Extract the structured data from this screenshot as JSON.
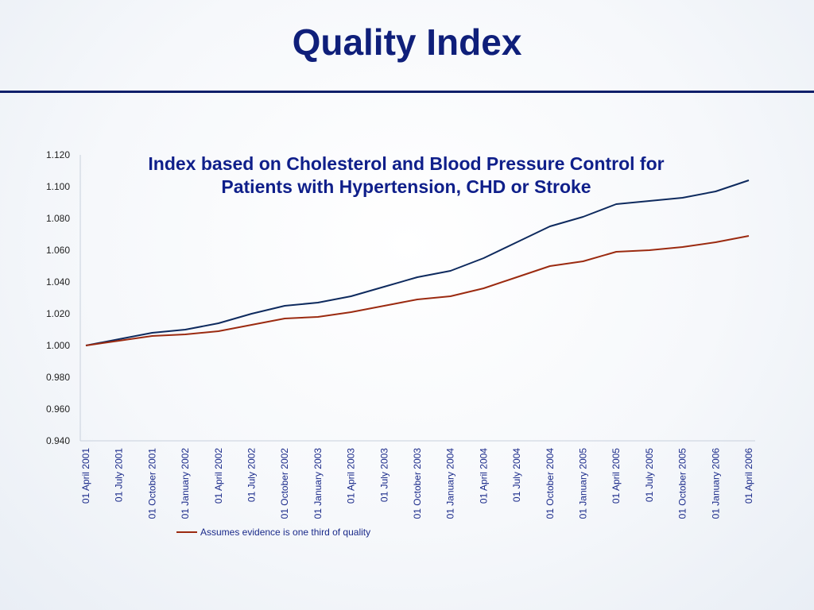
{
  "slide": {
    "title": "Quality Index"
  },
  "chart_data": {
    "type": "line",
    "title_lines": [
      "Index based on Cholesterol and Blood Pressure Control for",
      "Patients with Hypertension, CHD or Stroke"
    ],
    "x": [
      "01 April 2001",
      "01 July 2001",
      "01 October 2001",
      "01 January 2002",
      "01 April 2002",
      "01 July 2002",
      "01 October 2002",
      "01 January 2003",
      "01 April 2003",
      "01 July 2003",
      "01 October 2003",
      "01 January 2004",
      "01 April 2004",
      "01 July 2004",
      "01 October 2004",
      "01 January 2005",
      "01 April 2005",
      "01 July 2005",
      "01 October 2005",
      "01 January 2006",
      "01 April 2006"
    ],
    "series": [
      {
        "color": "#0e2a5e",
        "values": [
          1.0,
          1.004,
          1.008,
          1.01,
          1.014,
          1.02,
          1.025,
          1.027,
          1.031,
          1.037,
          1.043,
          1.047,
          1.055,
          1.065,
          1.075,
          1.081,
          1.089,
          1.091,
          1.093,
          1.097,
          1.104
        ]
      },
      {
        "name": "Assumes evidence is one third of quality",
        "color": "#9b2a10",
        "values": [
          1.0,
          1.003,
          1.006,
          1.007,
          1.009,
          1.013,
          1.017,
          1.018,
          1.021,
          1.025,
          1.029,
          1.031,
          1.036,
          1.043,
          1.05,
          1.053,
          1.059,
          1.06,
          1.062,
          1.065,
          1.069
        ]
      }
    ],
    "y_ticks": [
      "1.120",
      "1.100",
      "1.080",
      "1.060",
      "1.040",
      "1.020",
      "1.000",
      "0.980",
      "0.960",
      "0.940"
    ],
    "ylim": [
      0.94,
      1.12
    ],
    "xlabel": "",
    "ylabel": "",
    "grid": false,
    "legend_position": "bottom-left"
  }
}
